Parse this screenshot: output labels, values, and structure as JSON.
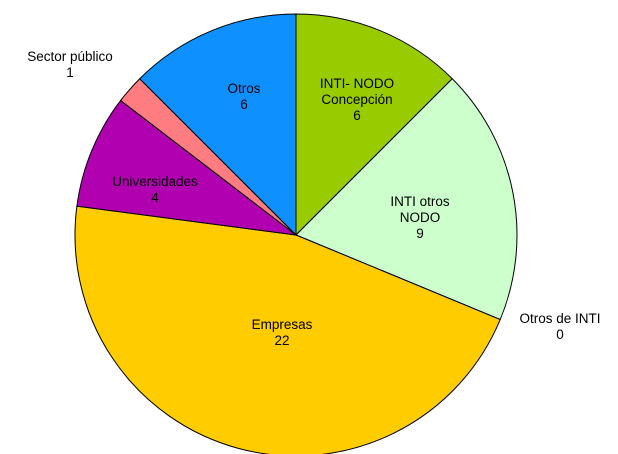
{
  "chart_data": {
    "type": "pie",
    "categories": [
      "INTI- NODO Concepción",
      "INTI otros NODO",
      "Otros de INTI",
      "Empresas",
      "Universidades",
      "Sector público",
      "Otros"
    ],
    "values": [
      6,
      9,
      0,
      22,
      4,
      1,
      6
    ],
    "colors": [
      "#99cc00",
      "#ccffcc",
      "#ffffff",
      "#ffcc00",
      "#b000b0",
      "#ff7c80",
      "#0f90ff"
    ]
  }
}
